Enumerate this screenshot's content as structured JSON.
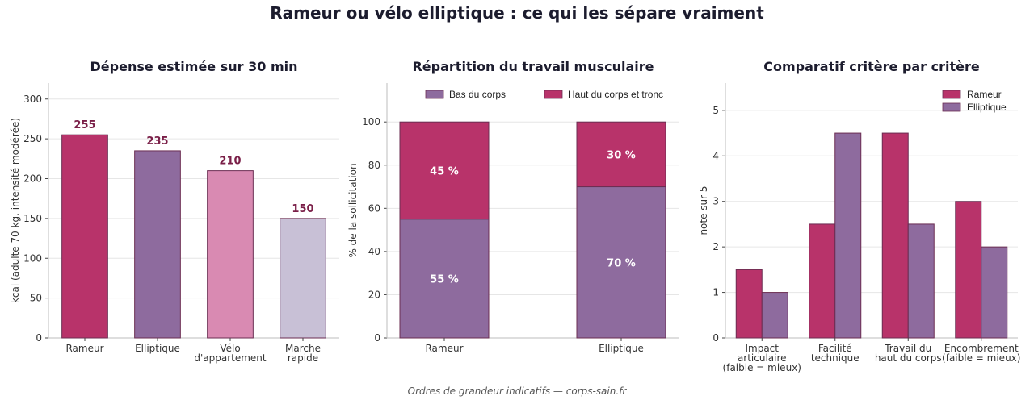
{
  "title": "Rameur ou vélo elliptique : ce qui les sépare vraiment",
  "footer": "Ordres de grandeur indicatifs — corps-sain.fr",
  "colors": {
    "rameur": "#b8336a",
    "elliptique": "#8e6b9e",
    "velo": "#d98ab2",
    "marche": "#c8c0d6",
    "label": "#7a1f48",
    "edge": "#6b2d52"
  },
  "chart_data": [
    {
      "type": "bar",
      "title": "Dépense estimée sur 30 min",
      "ylabel": "kcal (adulte 70 kg, intensité modérée)",
      "categories": [
        "Rameur",
        "Elliptique",
        "Vélo\nd'appartement",
        "Marche\nrapide"
      ],
      "values": [
        255,
        235,
        210,
        150
      ],
      "value_labels": [
        "255",
        "235",
        "210",
        "150"
      ],
      "ylim": [
        0,
        320
      ],
      "yticks": [
        0,
        50,
        100,
        150,
        200,
        250,
        300
      ],
      "grid": true
    },
    {
      "type": "bar",
      "stacked": true,
      "title": "Répartition du travail musculaire",
      "ylabel": "% de la sollicitation",
      "categories": [
        "Rameur",
        "Elliptique"
      ],
      "series": [
        {
          "name": "Bas du corps",
          "values": [
            55,
            70
          ],
          "labels": [
            "55 %",
            "70 %"
          ]
        },
        {
          "name": "Haut du corps et tronc",
          "values": [
            45,
            30
          ],
          "labels": [
            "45 %",
            "30 %"
          ]
        }
      ],
      "ylim": [
        0,
        118
      ],
      "yticks": [
        0,
        20,
        40,
        60,
        80,
        100
      ],
      "legend": "top",
      "grid": true
    },
    {
      "type": "bar",
      "title": "Comparatif critère par critère",
      "ylabel": "note sur 5",
      "categories": [
        "Impact\narticulaire\n(faible = mieux)",
        "Facilité\ntechnique",
        "Travail du\nhaut du corps",
        "Encombrement\n(faible = mieux)"
      ],
      "series": [
        {
          "name": "Rameur",
          "values": [
            1.5,
            2.5,
            4.5,
            3
          ]
        },
        {
          "name": "Elliptique",
          "values": [
            1,
            4.5,
            2.5,
            2
          ]
        }
      ],
      "ylim": [
        0,
        5.6
      ],
      "yticks": [
        0,
        1,
        2,
        3,
        4,
        5
      ],
      "legend": "top-right",
      "grid": true
    }
  ]
}
